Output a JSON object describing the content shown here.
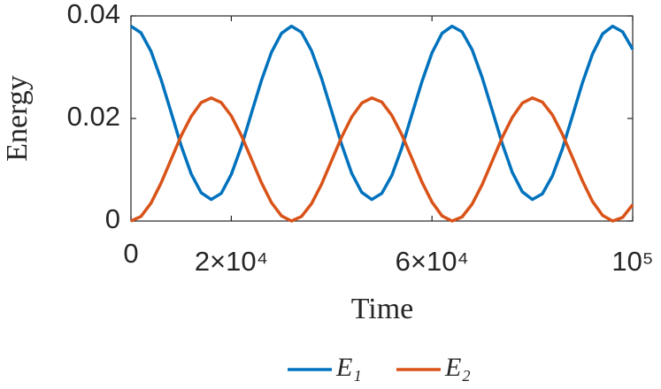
{
  "chart_data": {
    "type": "line",
    "xlabel": "Time",
    "ylabel": "Energy",
    "x": [
      0,
      2000,
      4000,
      6000,
      8000,
      10000,
      12000,
      14000,
      16000,
      18000,
      20000,
      22000,
      24000,
      26000,
      28000,
      30000,
      32000,
      34000,
      36000,
      38000,
      40000,
      42000,
      44000,
      46000,
      48000,
      50000,
      52000,
      54000,
      56000,
      58000,
      60000,
      62000,
      64000,
      66000,
      68000,
      70000,
      72000,
      74000,
      76000,
      78000,
      80000,
      82000,
      84000,
      86000,
      88000,
      90000,
      92000,
      94000,
      96000,
      98000,
      100000
    ],
    "series": [
      {
        "name": "E₁",
        "color": "#0072BD",
        "values": [
          0.038,
          0.0367,
          0.0331,
          0.0276,
          0.0212,
          0.0147,
          0.0092,
          0.0055,
          0.0042,
          0.0054,
          0.0091,
          0.0145,
          0.021,
          0.0274,
          0.0329,
          0.0366,
          0.038,
          0.0368,
          0.0332,
          0.0278,
          0.0214,
          0.0149,
          0.0093,
          0.0056,
          0.0042,
          0.0054,
          0.0089,
          0.0143,
          0.0208,
          0.0272,
          0.0328,
          0.0366,
          0.038,
          0.0369,
          0.0334,
          0.028,
          0.0216,
          0.0151,
          0.0095,
          0.0057,
          0.0042,
          0.0053,
          0.0088,
          0.0141,
          0.0205,
          0.027,
          0.0326,
          0.0365,
          0.038,
          0.0369,
          0.0335
        ]
      },
      {
        "name": "E₂",
        "color": "#D95319",
        "values": [
          0.0,
          0.0009,
          0.0035,
          0.0074,
          0.012,
          0.0166,
          0.0204,
          0.0231,
          0.024,
          0.0231,
          0.0205,
          0.0167,
          0.0121,
          0.0075,
          0.0036,
          0.001,
          0.0,
          0.0009,
          0.0034,
          0.0072,
          0.0118,
          0.0164,
          0.0203,
          0.023,
          0.024,
          0.0232,
          0.0206,
          0.0168,
          0.0122,
          0.0076,
          0.0037,
          0.001,
          0.0,
          0.0008,
          0.0033,
          0.0071,
          0.0117,
          0.0163,
          0.0202,
          0.023,
          0.024,
          0.0232,
          0.0207,
          0.0169,
          0.0124,
          0.0078,
          0.0038,
          0.0011,
          0.0,
          0.0007,
          0.0032
        ]
      }
    ],
    "xlim": [
      0,
      100000
    ],
    "xticks": [
      0,
      {
        "value": 20000,
        "label": "2×10⁴"
      },
      {
        "value": 60000,
        "label": "6×10⁴"
      },
      {
        "value": 100000,
        "label": "10⁵"
      }
    ],
    "ylim": [
      0,
      0.04
    ],
    "yticks": [
      0,
      0.02,
      0.04
    ],
    "grid": false,
    "legend": "bottom"
  }
}
